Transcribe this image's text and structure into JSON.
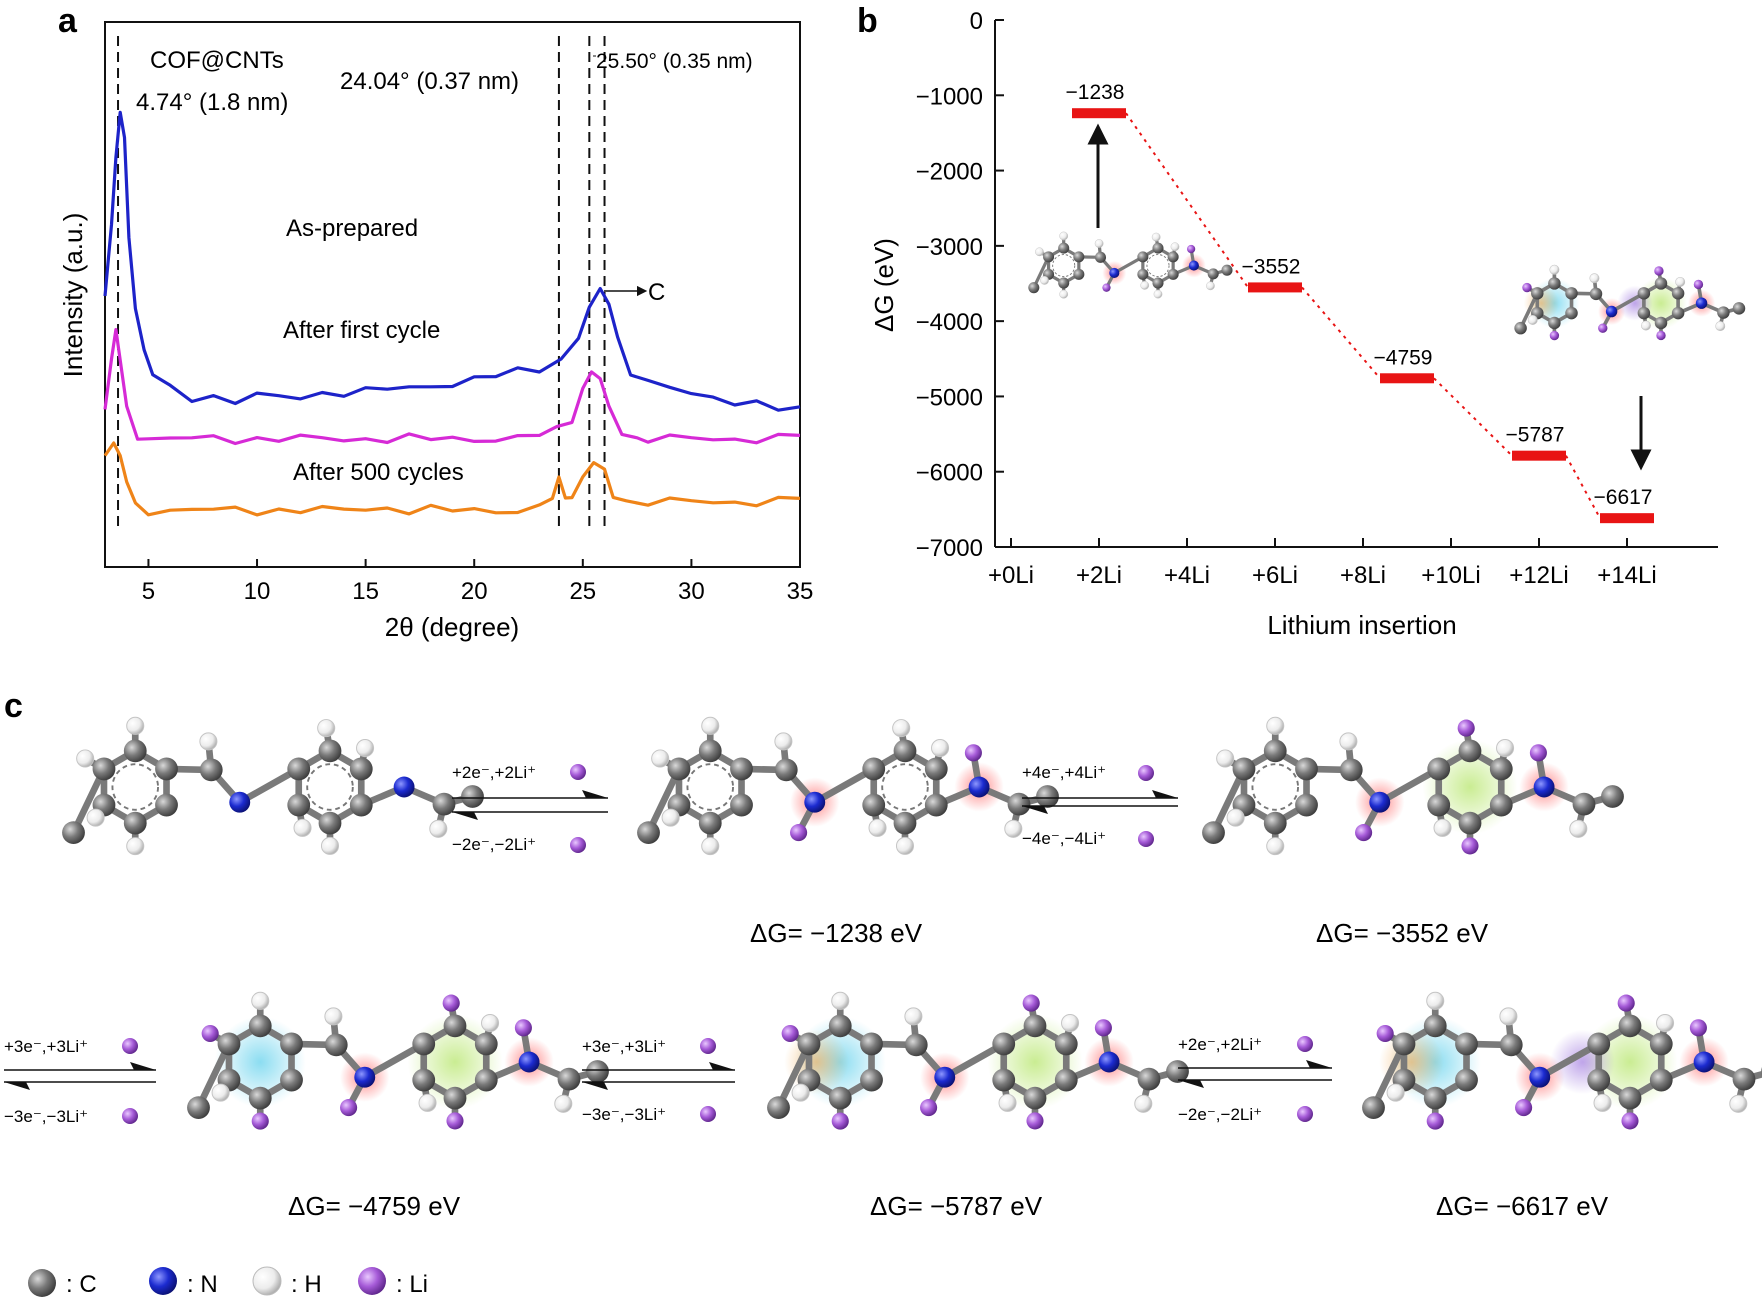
{
  "panels": {
    "a": "a",
    "b": "b",
    "c": "c"
  },
  "chart_data": [
    {
      "type": "line",
      "panel": "a",
      "xlabel": "2θ (degree)",
      "ylabel": "Intensity (a.u.)",
      "xlim": [
        3,
        35
      ],
      "xticks": [
        5,
        10,
        15,
        20,
        25,
        30,
        35
      ],
      "sample_label": "COF@CNTs",
      "peak_labels": {
        "p1": "4.74° (1.8 nm)",
        "p2": "24.04° (0.37 nm)",
        "p3": "25.50° (0.35 nm)",
        "carbon": "C"
      },
      "reference_lines": [
        3.6,
        23.9,
        25.3,
        26.0
      ],
      "series": [
        {
          "name": "As-prepared",
          "color": "#1d23c9",
          "points": [
            [
              3.0,
              0.55
            ],
            [
              3.3,
              0.72
            ],
            [
              3.5,
              0.88
            ],
            [
              3.7,
              0.99
            ],
            [
              3.9,
              0.92
            ],
            [
              4.1,
              0.7
            ],
            [
              4.4,
              0.52
            ],
            [
              4.8,
              0.42
            ],
            [
              5.2,
              0.36
            ],
            [
              6,
              0.33
            ],
            [
              7,
              0.31
            ],
            [
              8,
              0.31
            ],
            [
              9,
              0.3
            ],
            [
              10,
              0.31
            ],
            [
              11,
              0.31
            ],
            [
              12,
              0.31
            ],
            [
              13,
              0.32
            ],
            [
              14,
              0.32
            ],
            [
              15,
              0.32
            ],
            [
              16,
              0.33
            ],
            [
              17,
              0.33
            ],
            [
              18,
              0.34
            ],
            [
              19,
              0.34
            ],
            [
              20,
              0.35
            ],
            [
              21,
              0.36
            ],
            [
              22,
              0.37
            ],
            [
              23,
              0.38
            ],
            [
              24,
              0.4
            ],
            [
              24.8,
              0.45
            ],
            [
              25.3,
              0.52
            ],
            [
              25.8,
              0.56
            ],
            [
              26.2,
              0.54
            ],
            [
              26.6,
              0.45
            ],
            [
              27.2,
              0.37
            ],
            [
              28,
              0.34
            ],
            [
              29,
              0.33
            ],
            [
              30,
              0.32
            ],
            [
              31,
              0.31
            ],
            [
              32,
              0.3
            ],
            [
              33,
              0.29
            ],
            [
              34,
              0.28
            ],
            [
              35,
              0.28
            ]
          ]
        },
        {
          "name": "After first cycle",
          "color": "#d62ad6",
          "points": [
            [
              3.0,
              0.28
            ],
            [
              3.3,
              0.4
            ],
            [
              3.5,
              0.47
            ],
            [
              3.7,
              0.4
            ],
            [
              4.0,
              0.28
            ],
            [
              4.5,
              0.22
            ],
            [
              5,
              0.21
            ],
            [
              6,
              0.21
            ],
            [
              7,
              0.21
            ],
            [
              8,
              0.21
            ],
            [
              9,
              0.21
            ],
            [
              10,
              0.21
            ],
            [
              11,
              0.21
            ],
            [
              12,
              0.21
            ],
            [
              13,
              0.21
            ],
            [
              14,
              0.21
            ],
            [
              15,
              0.21
            ],
            [
              16,
              0.21
            ],
            [
              17,
              0.21
            ],
            [
              18,
              0.21
            ],
            [
              19,
              0.21
            ],
            [
              20,
              0.21
            ],
            [
              21,
              0.21
            ],
            [
              22,
              0.21
            ],
            [
              23,
              0.22
            ],
            [
              23.8,
              0.23
            ],
            [
              24.5,
              0.26
            ],
            [
              25.0,
              0.33
            ],
            [
              25.4,
              0.37
            ],
            [
              25.8,
              0.35
            ],
            [
              26.2,
              0.28
            ],
            [
              26.8,
              0.23
            ],
            [
              27.5,
              0.21
            ],
            [
              28,
              0.21
            ],
            [
              29,
              0.21
            ],
            [
              30,
              0.21
            ],
            [
              31,
              0.21
            ],
            [
              32,
              0.21
            ],
            [
              33,
              0.21
            ],
            [
              34,
              0.21
            ],
            [
              35,
              0.22
            ]
          ]
        },
        {
          "name": "After 500 cycles",
          "color": "#ef8418",
          "points": [
            [
              3.0,
              0.17
            ],
            [
              3.4,
              0.2
            ],
            [
              3.7,
              0.17
            ],
            [
              4.0,
              0.11
            ],
            [
              4.4,
              0.05
            ],
            [
              5,
              0.04
            ],
            [
              6,
              0.04
            ],
            [
              7,
              0.04
            ],
            [
              8,
              0.04
            ],
            [
              9,
              0.04
            ],
            [
              10,
              0.04
            ],
            [
              11,
              0.04
            ],
            [
              12,
              0.04
            ],
            [
              13,
              0.04
            ],
            [
              14,
              0.04
            ],
            [
              15,
              0.045
            ],
            [
              16,
              0.045
            ],
            [
              17,
              0.04
            ],
            [
              18,
              0.04
            ],
            [
              19,
              0.04
            ],
            [
              20,
              0.04
            ],
            [
              21,
              0.04
            ],
            [
              22,
              0.04
            ],
            [
              23,
              0.045
            ],
            [
              23.6,
              0.07
            ],
            [
              23.9,
              0.11
            ],
            [
              24.2,
              0.08
            ],
            [
              24.5,
              0.07
            ],
            [
              25.0,
              0.12
            ],
            [
              25.5,
              0.15
            ],
            [
              26.0,
              0.13
            ],
            [
              26.4,
              0.08
            ],
            [
              27,
              0.06
            ],
            [
              28,
              0.06
            ],
            [
              29,
              0.06
            ],
            [
              30,
              0.06
            ],
            [
              31,
              0.06
            ],
            [
              32,
              0.06
            ],
            [
              33,
              0.06
            ],
            [
              34,
              0.06
            ],
            [
              35,
              0.07
            ]
          ]
        }
      ]
    },
    {
      "type": "bar",
      "panel": "b",
      "xlabel": "Lithium insertion",
      "ylabel": "ΔG (eV)",
      "ylim": [
        -7000,
        0
      ],
      "yticks": [
        0,
        -1000,
        -2000,
        -3000,
        -4000,
        -5000,
        -6000,
        -7000
      ],
      "categories": [
        "+0Li",
        "+2Li",
        "+4Li",
        "+6Li",
        "+8Li",
        "+10Li",
        "+12Li",
        "+14Li"
      ],
      "levels": [
        {
          "li": 2,
          "value": -1238,
          "label": "−1238"
        },
        {
          "li": 6,
          "value": -3552,
          "label": "−3552"
        },
        {
          "li": 9,
          "value": -4759,
          "label": "−4759"
        },
        {
          "li": 12,
          "value": -5787,
          "label": "−5787"
        },
        {
          "li": 14,
          "value": -6617,
          "label": "−6617"
        }
      ],
      "level_color": "#e81414"
    }
  ],
  "scheme": {
    "row1": {
      "step1_fwd": "+2e⁻,+2Li⁺",
      "step1_rev": "−2e⁻,−2Li⁺",
      "step2_fwd": "+4e⁻,+4Li⁺",
      "step2_rev": "−4e⁻,−4Li⁺",
      "dg1": "ΔG= −1238 eV",
      "dg2": "ΔG= −3552 eV"
    },
    "row2": {
      "step3_fwd": "+3e⁻,+3Li⁺",
      "step3_rev": "−3e⁻,−3Li⁺",
      "step4_fwd": "+3e⁻,+3Li⁺",
      "step4_rev": "−3e⁻,−3Li⁺",
      "step5_fwd": "+2e⁻,+2Li⁺",
      "step5_rev": "−2e⁻,−2Li⁺",
      "dg3": "ΔG= −4759 eV",
      "dg4": "ΔG= −5787 eV",
      "dg5": "ΔG= −6617 eV"
    }
  },
  "legend": {
    "c": ": C",
    "n": ": N",
    "h": ": H",
    "li": ": Li",
    "colors": {
      "c": "#6b6b6b",
      "n": "#1b2bc4",
      "h": "#f2f2f2",
      "li": "#a458d6"
    }
  }
}
